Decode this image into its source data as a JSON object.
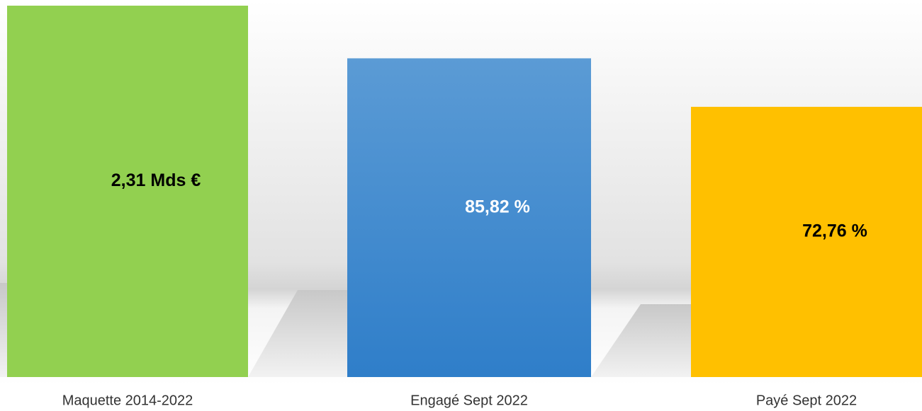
{
  "chart_data": {
    "type": "bar",
    "categories": [
      "Maquette 2014-2022",
      "Engagé Sept 2022",
      "Payé Sept 2022"
    ],
    "series": [
      {
        "axis": "y",
        "colors": [
          "#92d050",
          null,
          null
        ],
        "label_colors": [
          "#000000",
          null,
          null
        ],
        "values": [
          2.31,
          null,
          null
        ],
        "value_labels": [
          "2,31 Mds €",
          null,
          null
        ]
      },
      {
        "axis": "y2",
        "colors": [
          null,
          "#4a90d3",
          "#ffc000"
        ],
        "label_colors": [
          null,
          "#ffffff",
          "#000000"
        ],
        "values": [
          null,
          85.82,
          72.76
        ],
        "value_labels": [
          null,
          "85,82 %",
          "72,76 %"
        ]
      }
    ],
    "ylim": [
      0,
      2.31
    ],
    "y2lim": [
      0,
      100
    ]
  }
}
